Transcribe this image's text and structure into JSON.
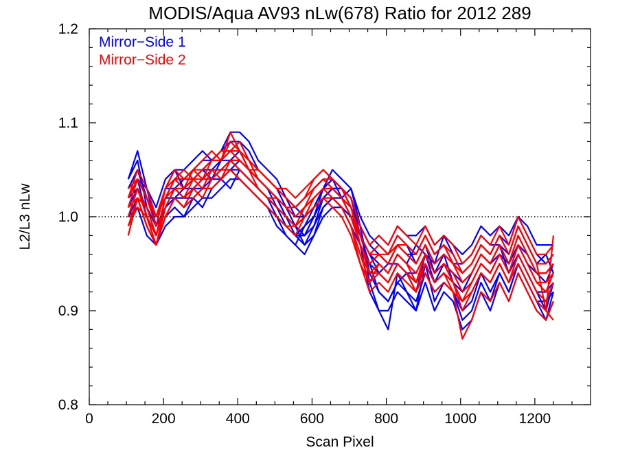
{
  "chart_data": {
    "type": "line",
    "title": "MODIS/Aqua AV93 nLw(678) Ratio for 2012 289",
    "xlabel": "Scan Pixel",
    "ylabel": "L2/L3 nLw",
    "xlim": [
      0,
      1350
    ],
    "ylim": [
      0.8,
      1.2
    ],
    "xticks": [
      "0",
      "200",
      "400",
      "600",
      "800",
      "1000",
      "1200"
    ],
    "yticks": [
      "0.8",
      "0.9",
      "1.0",
      "1.1",
      "1.2"
    ],
    "reference_line": {
      "y": 1.0,
      "style": "dotted"
    },
    "legend_position": "top-left",
    "legend": [
      {
        "label": "Mirror−Side 1",
        "color": "#0000ff"
      },
      {
        "label": "Mirror−Side 2",
        "color": "#ff0000"
      }
    ],
    "x": [
      105,
      130,
      155,
      180,
      205,
      230,
      255,
      280,
      305,
      330,
      355,
      380,
      405,
      430,
      455,
      480,
      505,
      530,
      555,
      580,
      605,
      630,
      655,
      680,
      705,
      730,
      755,
      780,
      805,
      830,
      855,
      880,
      905,
      930,
      955,
      980,
      1005,
      1030,
      1055,
      1080,
      1105,
      1130,
      1155,
      1180,
      1205,
      1230,
      1250
    ],
    "series": [
      {
        "group": "Mirror−Side 1",
        "color": "#0000ff",
        "values": [
          1.04,
          1.06,
          1.01,
          0.99,
          1.03,
          1.05,
          1.03,
          1.04,
          1.05,
          1.04,
          1.06,
          1.07,
          1.08,
          1.06,
          1.05,
          1.04,
          1.03,
          1.02,
          1.01,
          1.0,
          1.01,
          1.03,
          1.04,
          1.03,
          1.02,
          0.99,
          0.93,
          0.9,
          0.88,
          0.94,
          0.92,
          0.9,
          0.95,
          0.91,
          0.93,
          0.92,
          0.89,
          0.9,
          0.93,
          0.91,
          0.94,
          0.92,
          0.95,
          0.93,
          0.91,
          0.89,
          0.92
        ]
      },
      {
        "group": "Mirror−Side 1",
        "color": "#0000ff",
        "values": [
          1.02,
          1.04,
          1.0,
          0.97,
          1.01,
          1.03,
          1.02,
          1.03,
          1.04,
          1.05,
          1.05,
          1.06,
          1.07,
          1.05,
          1.04,
          1.03,
          1.02,
          1.0,
          0.99,
          0.98,
          0.99,
          1.02,
          1.03,
          1.02,
          1.01,
          0.98,
          0.95,
          0.92,
          0.91,
          0.93,
          0.94,
          0.92,
          0.96,
          0.93,
          0.95,
          0.94,
          0.92,
          0.93,
          0.95,
          0.94,
          0.96,
          0.95,
          0.97,
          0.95,
          0.94,
          0.93,
          0.95
        ]
      },
      {
        "group": "Mirror−Side 1",
        "color": "#0000ff",
        "values": [
          1.03,
          1.05,
          1.02,
          1.0,
          1.02,
          1.04,
          1.04,
          1.05,
          1.06,
          1.06,
          1.07,
          1.08,
          1.08,
          1.07,
          1.05,
          1.04,
          1.03,
          1.01,
          0.99,
          0.97,
          0.98,
          1.01,
          1.02,
          1.02,
          1.0,
          0.97,
          0.92,
          0.9,
          0.9,
          0.92,
          0.91,
          0.9,
          0.93,
          0.9,
          0.92,
          0.91,
          0.88,
          0.89,
          0.92,
          0.9,
          0.93,
          0.91,
          0.94,
          0.92,
          0.9,
          0.89,
          0.91
        ]
      },
      {
        "group": "Mirror−Side 1",
        "color": "#0000ff",
        "values": [
          1.0,
          1.02,
          0.99,
          0.97,
          1.0,
          1.01,
          1.0,
          1.02,
          1.01,
          1.03,
          1.04,
          1.03,
          1.05,
          1.04,
          1.03,
          1.02,
          1.0,
          0.99,
          0.98,
          0.97,
          0.99,
          1.01,
          1.02,
          1.01,
          1.0,
          0.98,
          0.96,
          0.95,
          0.94,
          0.96,
          0.95,
          0.97,
          0.96,
          0.95,
          0.98,
          0.96,
          0.94,
          0.95,
          0.97,
          0.96,
          0.98,
          0.97,
          1.0,
          0.98,
          0.96,
          0.95,
          0.96
        ]
      },
      {
        "group": "Mirror−Side 1",
        "color": "#0000ff",
        "values": [
          1.02,
          1.03,
          1.01,
          0.98,
          1.02,
          1.02,
          1.03,
          1.03,
          1.04,
          1.04,
          1.05,
          1.05,
          1.06,
          1.05,
          1.04,
          1.03,
          1.01,
          1.0,
          0.99,
          0.98,
          1.0,
          1.02,
          1.03,
          1.03,
          1.02,
          0.99,
          0.97,
          0.96,
          0.95,
          0.97,
          0.96,
          0.96,
          0.98,
          0.96,
          0.97,
          0.95,
          0.95,
          0.96,
          0.98,
          0.97,
          0.97,
          0.96,
          0.99,
          0.97,
          0.95,
          0.96,
          0.94
        ]
      },
      {
        "group": "Mirror−Side 1",
        "color": "#0000ff",
        "values": [
          1.01,
          1.04,
          1.03,
          0.99,
          1.01,
          1.02,
          1.01,
          1.03,
          1.03,
          1.03,
          1.04,
          1.05,
          1.04,
          1.03,
          1.02,
          1.01,
          1.0,
          0.98,
          0.97,
          0.99,
          1.0,
          1.03,
          1.04,
          1.02,
          1.03,
          1.0,
          0.98,
          0.97,
          0.96,
          0.98,
          0.97,
          0.95,
          0.97,
          0.94,
          0.96,
          0.93,
          0.92,
          0.94,
          0.96,
          0.95,
          0.97,
          0.94,
          0.96,
          0.94,
          0.92,
          0.9,
          0.93
        ]
      },
      {
        "group": "Mirror−Side 1",
        "color": "#0000ff",
        "values": [
          1.03,
          1.05,
          1.02,
          1.0,
          1.03,
          1.03,
          1.04,
          1.04,
          1.05,
          1.05,
          1.06,
          1.06,
          1.06,
          1.05,
          1.04,
          1.03,
          1.02,
          1.0,
          0.98,
          0.99,
          1.01,
          1.03,
          1.04,
          1.03,
          1.02,
          0.98,
          0.96,
          0.94,
          0.95,
          0.95,
          0.94,
          0.93,
          0.95,
          0.93,
          0.94,
          0.93,
          0.91,
          0.92,
          0.94,
          0.93,
          0.95,
          0.93,
          0.96,
          0.94,
          0.92,
          0.92,
          0.93
        ]
      },
      {
        "group": "Mirror−Side 1",
        "color": "#0000ff",
        "values": [
          1.01,
          1.03,
          1.0,
          0.98,
          1.01,
          1.02,
          1.02,
          1.02,
          1.03,
          1.04,
          1.04,
          1.05,
          1.05,
          1.04,
          1.03,
          1.02,
          1.01,
          0.99,
          0.98,
          0.98,
          1.0,
          1.02,
          1.03,
          1.03,
          1.01,
          0.99,
          0.97,
          0.98,
          0.97,
          0.99,
          0.98,
          0.98,
          0.99,
          0.97,
          0.98,
          0.97,
          0.96,
          0.97,
          0.99,
          0.98,
          0.99,
          0.98,
          1.0,
          0.99,
          0.97,
          0.97,
          0.97
        ]
      },
      {
        "group": "Mirror−Side 1",
        "color": "#0000ff",
        "values": [
          1.04,
          1.07,
          1.03,
          1.01,
          1.04,
          1.05,
          1.05,
          1.06,
          1.07,
          1.06,
          1.07,
          1.09,
          1.09,
          1.08,
          1.06,
          1.05,
          1.04,
          1.02,
          1.0,
          1.0,
          1.01,
          1.03,
          1.05,
          1.04,
          1.03,
          0.99,
          0.94,
          0.92,
          0.91,
          0.93,
          0.92,
          0.91,
          0.94,
          0.92,
          0.93,
          0.92,
          0.9,
          0.91,
          0.94,
          0.92,
          0.94,
          0.92,
          0.95,
          0.93,
          0.91,
          0.91,
          0.92
        ]
      },
      {
        "group": "Mirror−Side 1",
        "color": "#0000ff",
        "values": [
          1.0,
          1.01,
          0.98,
          0.97,
          0.99,
          1.0,
          1.0,
          1.01,
          1.02,
          1.02,
          1.03,
          1.04,
          1.04,
          1.03,
          1.02,
          1.01,
          0.99,
          0.98,
          0.97,
          0.96,
          0.98,
          1.0,
          1.01,
          1.01,
          0.99,
          0.97,
          0.95,
          0.94,
          0.93,
          0.95,
          0.94,
          0.94,
          0.96,
          0.94,
          0.95,
          0.94,
          0.93,
          0.94,
          0.96,
          0.95,
          0.96,
          0.95,
          0.97,
          0.96,
          0.94,
          0.94,
          0.95
        ]
      },
      {
        "group": "Mirror−Side 2",
        "color": "#ff0000",
        "values": [
          0.98,
          1.02,
          0.99,
          0.97,
          1.01,
          1.03,
          1.02,
          1.04,
          1.03,
          1.05,
          1.04,
          1.06,
          1.05,
          1.04,
          1.03,
          1.02,
          1.01,
          1.0,
          0.99,
          1.01,
          1.02,
          1.03,
          1.02,
          1.01,
          0.99,
          0.96,
          0.93,
          0.95,
          0.94,
          0.96,
          0.95,
          0.93,
          0.96,
          0.94,
          0.95,
          0.93,
          0.91,
          0.93,
          0.95,
          0.94,
          0.96,
          0.94,
          0.97,
          0.95,
          0.93,
          0.92,
          0.94
        ]
      },
      {
        "group": "Mirror−Side 2",
        "color": "#ff0000",
        "values": [
          1.0,
          1.03,
          1.01,
          0.98,
          1.02,
          1.04,
          1.03,
          1.05,
          1.04,
          1.06,
          1.06,
          1.09,
          1.07,
          1.05,
          1.04,
          1.03,
          1.02,
          1.01,
          1.0,
          1.01,
          1.03,
          1.04,
          1.03,
          1.02,
          1.0,
          0.97,
          0.95,
          0.96,
          0.95,
          0.97,
          0.96,
          0.95,
          0.97,
          0.95,
          0.96,
          0.95,
          0.93,
          0.94,
          0.96,
          0.95,
          0.97,
          0.95,
          0.98,
          0.96,
          0.94,
          0.94,
          0.95
        ]
      },
      {
        "group": "Mirror−Side 2",
        "color": "#ff0000",
        "values": [
          1.01,
          1.04,
          1.02,
          0.99,
          1.03,
          1.04,
          1.04,
          1.05,
          1.05,
          1.06,
          1.07,
          1.07,
          1.06,
          1.05,
          1.05,
          1.04,
          1.03,
          1.02,
          1.01,
          1.02,
          1.03,
          1.04,
          1.04,
          1.03,
          1.01,
          0.98,
          0.96,
          0.97,
          0.96,
          0.98,
          0.97,
          0.96,
          0.98,
          0.96,
          0.97,
          0.96,
          0.94,
          0.95,
          0.97,
          0.96,
          0.98,
          0.96,
          0.99,
          0.97,
          0.95,
          0.95,
          0.96
        ]
      },
      {
        "group": "Mirror−Side 2",
        "color": "#ff0000",
        "values": [
          0.99,
          1.01,
          1.0,
          0.97,
          1.0,
          1.02,
          1.01,
          1.03,
          1.02,
          1.04,
          1.05,
          1.05,
          1.04,
          1.03,
          1.02,
          1.01,
          1.0,
          0.99,
          0.98,
          1.0,
          1.01,
          1.02,
          1.01,
          1.0,
          0.98,
          0.95,
          0.92,
          0.93,
          0.92,
          0.94,
          0.93,
          0.92,
          0.94,
          0.92,
          0.93,
          0.92,
          0.87,
          0.89,
          0.92,
          0.91,
          0.93,
          0.91,
          0.94,
          0.92,
          0.9,
          0.89,
          0.91
        ]
      },
      {
        "group": "Mirror−Side 2",
        "color": "#ff0000",
        "values": [
          1.02,
          1.05,
          1.03,
          1.0,
          1.03,
          1.05,
          1.04,
          1.05,
          1.06,
          1.07,
          1.06,
          1.08,
          1.07,
          1.06,
          1.05,
          1.04,
          1.03,
          1.03,
          1.02,
          1.03,
          1.04,
          1.05,
          1.04,
          1.03,
          1.02,
          0.99,
          0.97,
          0.98,
          0.97,
          0.99,
          0.98,
          0.97,
          0.99,
          0.97,
          0.98,
          0.97,
          0.95,
          0.96,
          0.98,
          0.97,
          0.99,
          0.97,
          1.0,
          0.98,
          0.96,
          0.96,
          0.97
        ]
      },
      {
        "group": "Mirror−Side 2",
        "color": "#ff0000",
        "values": [
          1.01,
          1.02,
          1.01,
          0.98,
          1.02,
          1.03,
          1.03,
          1.04,
          1.04,
          1.05,
          1.05,
          1.06,
          1.06,
          1.05,
          1.03,
          1.02,
          1.02,
          1.01,
          1.0,
          1.01,
          1.02,
          1.03,
          1.03,
          1.02,
          1.0,
          0.97,
          0.94,
          0.95,
          0.94,
          0.96,
          0.95,
          0.94,
          0.96,
          0.94,
          0.95,
          0.94,
          0.92,
          0.93,
          0.95,
          0.94,
          0.96,
          0.94,
          0.97,
          0.95,
          0.93,
          0.93,
          0.94
        ]
      },
      {
        "group": "Mirror−Side 2",
        "color": "#ff0000",
        "values": [
          1.03,
          1.04,
          1.02,
          1.0,
          1.02,
          1.04,
          1.05,
          1.04,
          1.05,
          1.06,
          1.07,
          1.07,
          1.08,
          1.06,
          1.05,
          1.04,
          1.03,
          1.02,
          1.01,
          1.02,
          1.04,
          1.05,
          1.04,
          1.03,
          1.01,
          0.98,
          0.96,
          0.96,
          0.95,
          0.97,
          0.96,
          0.95,
          0.97,
          0.95,
          0.96,
          0.95,
          0.93,
          0.94,
          0.96,
          0.95,
          0.97,
          0.95,
          0.98,
          0.96,
          0.94,
          0.94,
          0.95
        ]
      },
      {
        "group": "Mirror−Side 2",
        "color": "#ff0000",
        "values": [
          1.0,
          1.03,
          1.0,
          0.98,
          1.01,
          1.03,
          1.02,
          1.03,
          1.04,
          1.04,
          1.05,
          1.06,
          1.05,
          1.04,
          1.03,
          1.02,
          1.01,
          1.0,
          0.99,
          1.0,
          1.02,
          1.03,
          1.02,
          1.01,
          0.99,
          0.96,
          0.94,
          0.94,
          0.93,
          0.95,
          0.94,
          0.93,
          0.95,
          0.93,
          0.94,
          0.93,
          0.9,
          0.92,
          0.94,
          0.93,
          0.95,
          0.93,
          0.96,
          0.94,
          0.92,
          0.91,
          0.93
        ]
      },
      {
        "group": "Mirror−Side 2",
        "color": "#ff0000",
        "values": [
          1.02,
          1.04,
          1.02,
          0.99,
          1.03,
          1.05,
          1.04,
          1.04,
          1.05,
          1.06,
          1.06,
          1.07,
          1.07,
          1.06,
          1.04,
          1.03,
          1.02,
          1.01,
          1.01,
          1.02,
          1.03,
          1.04,
          1.03,
          1.02,
          1.01,
          0.97,
          0.95,
          0.96,
          0.96,
          0.97,
          0.97,
          0.96,
          0.98,
          0.96,
          0.97,
          0.95,
          0.94,
          0.95,
          0.97,
          0.96,
          0.98,
          0.96,
          0.99,
          0.97,
          0.95,
          0.9,
          0.98
        ]
      },
      {
        "group": "Mirror−Side 2",
        "color": "#ff0000",
        "values": [
          0.99,
          1.02,
          0.99,
          0.97,
          1.0,
          1.02,
          1.01,
          1.02,
          1.03,
          1.03,
          1.04,
          1.05,
          1.04,
          1.03,
          1.02,
          1.01,
          1.0,
          0.99,
          0.99,
          1.0,
          1.01,
          1.02,
          1.02,
          1.01,
          0.99,
          0.95,
          0.93,
          0.94,
          0.93,
          0.95,
          0.94,
          0.92,
          0.95,
          0.93,
          0.94,
          0.92,
          0.91,
          0.92,
          0.94,
          0.93,
          0.95,
          0.93,
          0.95,
          0.93,
          0.91,
          0.9,
          0.89
        ]
      }
    ]
  }
}
